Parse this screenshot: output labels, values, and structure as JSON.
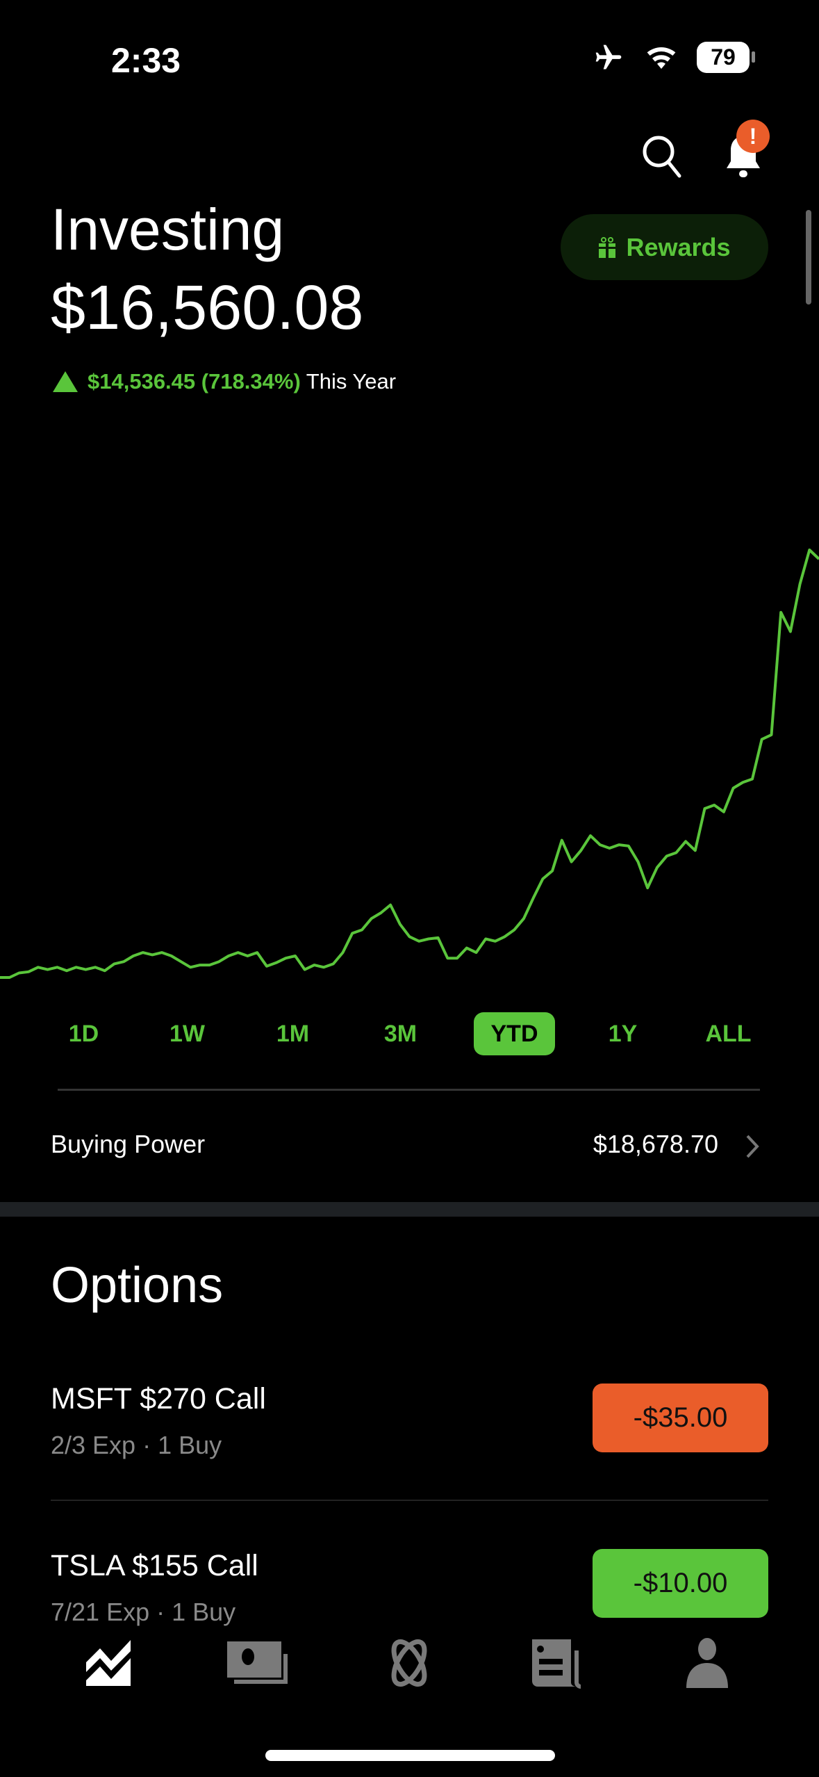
{
  "status_bar": {
    "time": "2:33",
    "battery": "79",
    "icons": [
      "airplane-icon",
      "wifi-icon",
      "battery-icon"
    ]
  },
  "header": {
    "search_icon": "search-icon",
    "bell_icon": "bell-icon",
    "notification_badge": "!"
  },
  "portfolio": {
    "title": "Investing",
    "value": "$16,560.08",
    "change": "$14,536.45 (718.34%)",
    "change_period": "This Year",
    "rewards_label": "Rewards"
  },
  "colors": {
    "accent": "#5ac53b",
    "negative": "#ea5d2a",
    "background": "#000000"
  },
  "chart_data": {
    "type": "line",
    "color": "#5ac53b",
    "axes": "hidden",
    "grid": false,
    "values": [
      2024,
      2024,
      2178,
      2217,
      2371,
      2294,
      2371,
      2255,
      2371,
      2294,
      2371,
      2255,
      2487,
      2564,
      2757,
      2872,
      2795,
      2872,
      2757,
      2564,
      2371,
      2448,
      2448,
      2564,
      2757,
      2872,
      2757,
      2872,
      2410,
      2525,
      2680,
      2757,
      2294,
      2448,
      2371,
      2487,
      2872,
      3528,
      3644,
      4029,
      4222,
      4492,
      3836,
      3412,
      3258,
      3335,
      3374,
      2680,
      2680,
      3027,
      2872,
      3335,
      3258,
      3412,
      3644,
      4029,
      4723,
      5379,
      5649,
      6690,
      5957,
      6343,
      6844,
      6536,
      6420,
      6536,
      6497,
      5957,
      5070,
      5764,
      6150,
      6266,
      6651,
      6343,
      7769,
      7885,
      7654,
      8464,
      8656,
      8772,
      10122,
      10276,
      14440,
      13785,
      15404,
      16561,
      16253
    ]
  },
  "ranges": {
    "items": [
      "1D",
      "1W",
      "1M",
      "3M",
      "YTD",
      "1Y",
      "ALL"
    ],
    "selected": "YTD"
  },
  "buying_power": {
    "label": "Buying Power",
    "value": "$18,678.70"
  },
  "options": {
    "heading": "Options",
    "rows": [
      {
        "title": "MSFT $270 Call",
        "subtitle": "2/3 Exp · 1 Buy",
        "amount": "-$35.00",
        "color": "#ea5d2a"
      },
      {
        "title": "TSLA $155 Call",
        "subtitle": "7/21 Exp · 1 Buy",
        "amount": "-$10.00",
        "color": "#5ac53b"
      }
    ]
  },
  "tab_bar": {
    "items": [
      "investing-icon",
      "cash-icon",
      "crypto-icon",
      "news-icon",
      "account-icon"
    ],
    "selected": "investing-icon"
  }
}
